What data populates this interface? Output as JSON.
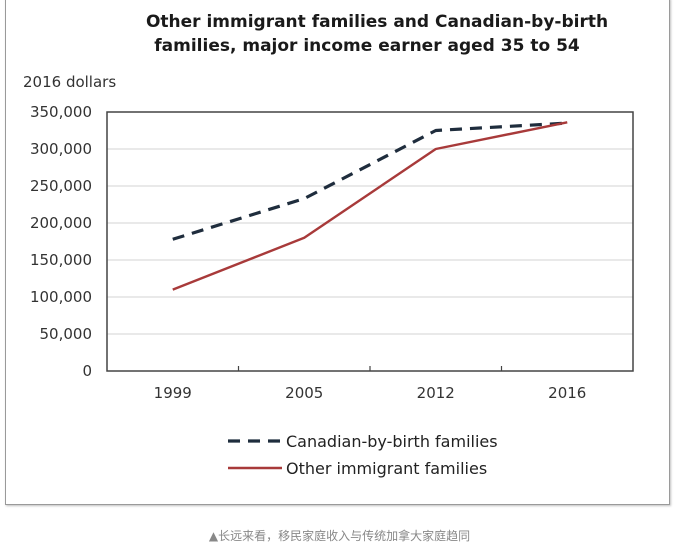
{
  "chart_data": {
    "type": "line",
    "title": "Other immigrant families and Canadian-by-birth families, major income earner aged 35 to 54",
    "title_lines": [
      "Other immigrant families and Canadian-by-birth",
      "families, major income earner aged 35 to 54"
    ],
    "ylabel": "2016 dollars",
    "xlabel": "",
    "categories": [
      "1999",
      "2005",
      "2012",
      "2016"
    ],
    "ylim": [
      0,
      350000
    ],
    "yticks": [
      0,
      50000,
      100000,
      150000,
      200000,
      250000,
      300000,
      350000
    ],
    "ytick_labels": [
      "0",
      "50,000",
      "100,000",
      "150,000",
      "200,000",
      "250,000",
      "300,000",
      "350,000"
    ],
    "grid": true,
    "legend_position": "bottom",
    "series": [
      {
        "name": "Canadian-by-birth families",
        "values": [
          178000,
          233000,
          325000,
          335000
        ],
        "color": "#1f2d3d",
        "style": "dashed"
      },
      {
        "name": "Other immigrant families",
        "values": [
          110000,
          180000,
          300000,
          336000
        ],
        "color": "#a83a3a",
        "style": "solid"
      }
    ]
  },
  "caption": "▲长远来看，移民家庭收入与传统加拿大家庭趋同"
}
